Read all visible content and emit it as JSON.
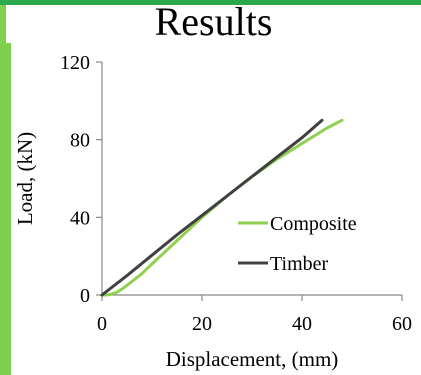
{
  "slide": {
    "title": "Results",
    "colors": {
      "background_green": "#7fd04f",
      "top_rule_green": "#2aa84a",
      "panel": "#ffffff"
    }
  },
  "chart_data": {
    "type": "line",
    "xlabel": "Displacement, (mm)",
    "ylabel": "Load, (kN)",
    "xlim": [
      0,
      60
    ],
    "ylim": [
      0,
      120
    ],
    "xticks": [
      0,
      20,
      40,
      60
    ],
    "yticks": [
      0,
      40,
      80,
      120
    ],
    "grid": false,
    "legend_position": "center-right",
    "series": [
      {
        "name": "Composite",
        "color": "#8fd14f",
        "x": [
          0,
          1,
          2,
          3,
          4,
          6,
          8,
          10,
          15,
          20,
          25,
          30,
          35,
          40,
          45,
          48
        ],
        "y": [
          0,
          0,
          0.5,
          1.5,
          3,
          7,
          11,
          16,
          28,
          40,
          51,
          61,
          70,
          78,
          86,
          90
        ]
      },
      {
        "name": "Timber",
        "color": "#404040",
        "x": [
          0,
          5,
          10,
          15,
          20,
          25,
          30,
          35,
          40,
          44
        ],
        "y": [
          0,
          10,
          20.5,
          31,
          41,
          51,
          61,
          71,
          81,
          90
        ]
      }
    ]
  }
}
